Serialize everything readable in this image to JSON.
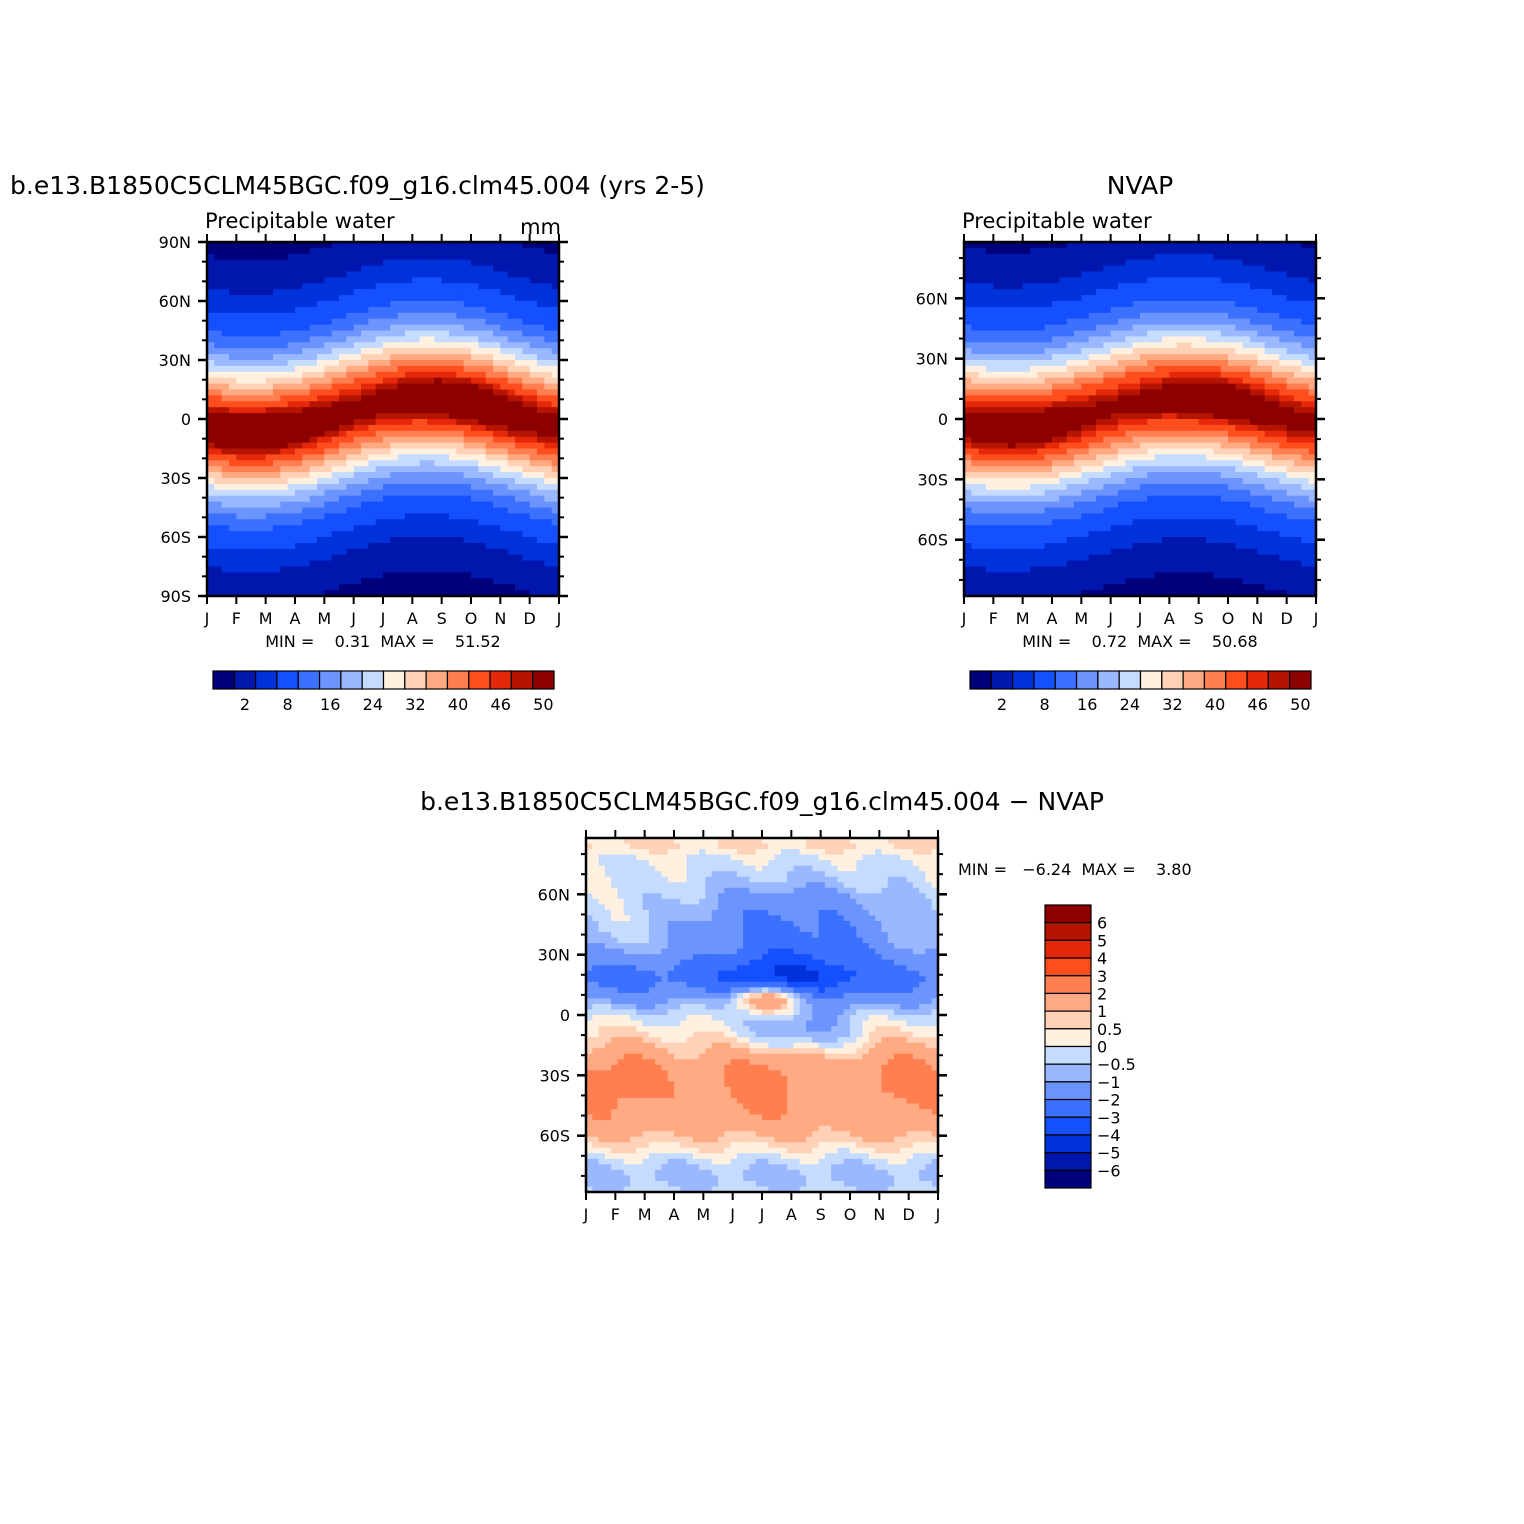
{
  "colors": {
    "palette": [
      "#00007a",
      "#0016ac",
      "#0032db",
      "#1450ff",
      "#3c70ff",
      "#6b94ff",
      "#9ab8ff",
      "#c6dcff",
      "#fff0e0",
      "#ffd2b8",
      "#ffaa82",
      "#ff7f50",
      "#ff4e1e",
      "#e6280a",
      "#b41400",
      "#8c0000"
    ],
    "axis": "#000000"
  },
  "chart_data": [
    {
      "id": "model",
      "type": "heatmap",
      "title": "b.e13.B1850C5CLM45BGC.f09_g16.clm45.004 (yrs 2-5)",
      "subtitle": "Precipitable water",
      "units": "mm",
      "x_labels": [
        "J",
        "F",
        "M",
        "A",
        "M",
        "J",
        "J",
        "A",
        "S",
        "O",
        "N",
        "D",
        "J"
      ],
      "y_labels": [
        "90N",
        "60N",
        "30N",
        "0",
        "30S",
        "60S",
        "90S"
      ],
      "ylim": [
        -90,
        90
      ],
      "stats": "MIN =    0.31  MAX =    51.52",
      "colorbar_labels": [
        "2",
        "8",
        "16",
        "24",
        "32",
        "40",
        "46",
        "50"
      ],
      "peak_value": 51.5,
      "peak_lat_annual_mean": 2,
      "seasonal_lat_shift": 9,
      "peak_month": 7.5
    },
    {
      "id": "obs",
      "type": "heatmap",
      "title": "NVAP",
      "subtitle": "Precipitable water",
      "units": "",
      "x_labels": [
        "J",
        "F",
        "M",
        "A",
        "M",
        "J",
        "J",
        "A",
        "S",
        "O",
        "N",
        "D",
        "J"
      ],
      "y_labels": [
        "60N",
        "30N",
        "0",
        "30S",
        "60S"
      ],
      "ylim": [
        -88,
        88
      ],
      "stats": "MIN =    0.72  MAX =    50.68",
      "colorbar_labels": [
        "2",
        "8",
        "16",
        "24",
        "32",
        "40",
        "46",
        "50"
      ],
      "peak_value": 50.7,
      "peak_lat_annual_mean": 3,
      "seasonal_lat_shift": 8,
      "peak_month": 7.5
    },
    {
      "id": "diff",
      "type": "heatmap",
      "title": "b.e13.B1850C5CLM45BGC.f09_g16.clm45.004 − NVAP",
      "subtitle": "",
      "x_labels": [
        "J",
        "F",
        "M",
        "A",
        "M",
        "J",
        "J",
        "A",
        "S",
        "O",
        "N",
        "D",
        "J"
      ],
      "y_labels": [
        "60N",
        "30N",
        "0",
        "30S",
        "60S"
      ],
      "ylim": [
        -88,
        88
      ],
      "stats": "MIN =   −6.24  MAX =    3.80",
      "colorbar_labels": [
        "6",
        "5",
        "4",
        "3",
        "2",
        "1",
        "0.5",
        "0",
        "−0.5",
        "−1",
        "−2",
        "−3",
        "−4",
        "−5",
        "−6"
      ],
      "levels": [
        -6,
        -5,
        -4,
        -3,
        -2,
        -1,
        -0.5,
        0,
        0.5,
        1,
        2,
        3,
        4,
        5,
        6
      ],
      "min": -6.24,
      "max": 3.8
    }
  ]
}
